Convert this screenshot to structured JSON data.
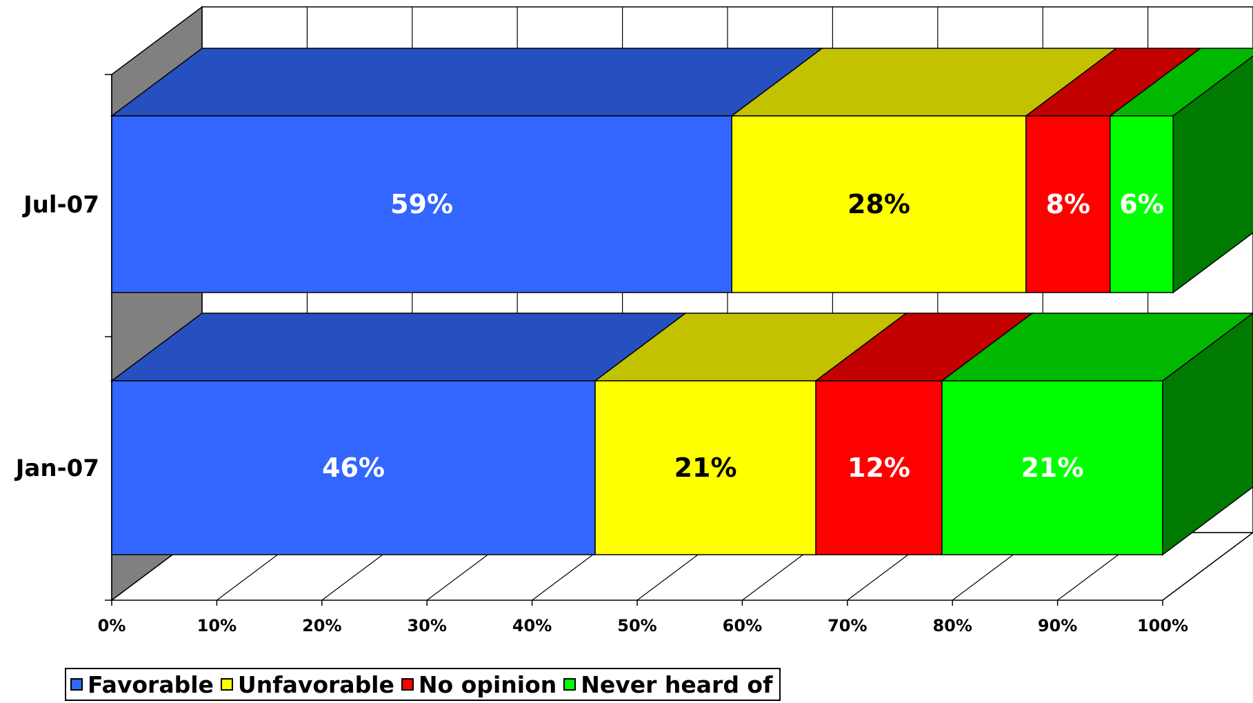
{
  "chart_data": {
    "type": "bar",
    "orientation": "horizontal",
    "stacked": "percent",
    "three_d": true,
    "categories": [
      "Jul-07",
      "Jan-07"
    ],
    "series": [
      {
        "name": "Favorable",
        "values": [
          59,
          46
        ],
        "labels": [
          "59%",
          "46%"
        ],
        "color": "#3366FF",
        "top_color": "#2650C0",
        "label_color": "#FFFFFF"
      },
      {
        "name": "Unfavorable",
        "values": [
          28,
          21
        ],
        "labels": [
          "28%",
          "21%"
        ],
        "color": "#FFFF00",
        "top_color": "#C2C200",
        "label_color": "#000000"
      },
      {
        "name": "No opinion",
        "values": [
          8,
          12
        ],
        "labels": [
          "8%",
          "12%"
        ],
        "color": "#FF0000",
        "top_color": "#C20000",
        "label_color": "#FFFFFF"
      },
      {
        "name": "Never heard of",
        "values": [
          6,
          21
        ],
        "labels": [
          "6%",
          "21%"
        ],
        "color": "#00FF00",
        "top_color": "#00B800",
        "label_color": "#FFFFFF"
      }
    ],
    "x_ticks": [
      "0%",
      "10%",
      "20%",
      "30%",
      "40%",
      "50%",
      "60%",
      "70%",
      "80%",
      "90%",
      "100%"
    ],
    "xlim": [
      0,
      100
    ],
    "grid": true,
    "legend_position": "bottom-left"
  }
}
